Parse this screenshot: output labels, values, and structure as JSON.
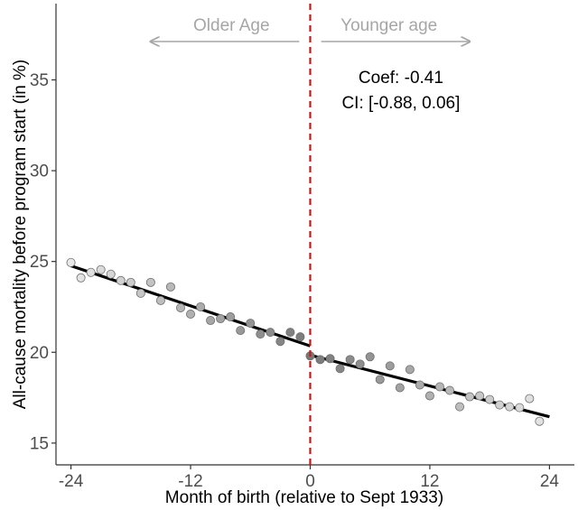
{
  "chart_data": {
    "type": "scatter",
    "title": "",
    "xlabel": "Month of birth (relative to Sept 1933)",
    "ylabel": "All-cause mortality before program start (in %)",
    "xlim": [
      -25.5,
      26.5
    ],
    "ylim": [
      13.8,
      39.2
    ],
    "x_ticks": [
      -24,
      -12,
      0,
      12,
      24
    ],
    "x_tick_labels": [
      "-24",
      "-12",
      "0",
      "12",
      "24"
    ],
    "y_ticks": [
      15,
      20,
      25,
      30,
      35
    ],
    "y_tick_labels": [
      "15",
      "20",
      "25",
      "30",
      "35"
    ],
    "grid": false,
    "cutoff": {
      "x": 0,
      "color": "#b22222",
      "style": "dashed"
    },
    "regions": {
      "left_label": "Older Age",
      "right_label": "Younger age",
      "arrow_color": "#a6a6a6"
    },
    "annotations": {
      "coef": "Coef: -0.41",
      "ci": "CI: [-0.88, 0.06]"
    },
    "fit_lines": [
      {
        "from": [
          -24,
          24.76
        ],
        "to": [
          0,
          20.35
        ]
      },
      {
        "from": [
          0,
          19.84
        ],
        "to": [
          24,
          16.45
        ]
      }
    ],
    "points": [
      {
        "x": -24,
        "y": 24.94
      },
      {
        "x": -23,
        "y": 24.1
      },
      {
        "x": -22,
        "y": 24.4
      },
      {
        "x": -21,
        "y": 24.55
      },
      {
        "x": -20,
        "y": 24.3
      },
      {
        "x": -19,
        "y": 23.95
      },
      {
        "x": -18,
        "y": 23.85
      },
      {
        "x": -17,
        "y": 23.25
      },
      {
        "x": -16,
        "y": 23.85
      },
      {
        "x": -15,
        "y": 22.85
      },
      {
        "x": -14,
        "y": 23.6
      },
      {
        "x": -13,
        "y": 22.45
      },
      {
        "x": -12,
        "y": 22.1
      },
      {
        "x": -11,
        "y": 22.5
      },
      {
        "x": -10,
        "y": 21.75
      },
      {
        "x": -9,
        "y": 21.85
      },
      {
        "x": -8,
        "y": 21.95
      },
      {
        "x": -7,
        "y": 21.2
      },
      {
        "x": -6,
        "y": 21.6
      },
      {
        "x": -5,
        "y": 21.0
      },
      {
        "x": -4,
        "y": 21.1
      },
      {
        "x": -3,
        "y": 20.6
      },
      {
        "x": -2,
        "y": 21.1
      },
      {
        "x": -1,
        "y": 20.85
      },
      {
        "x": 0,
        "y": 19.8
      },
      {
        "x": 1,
        "y": 19.6
      },
      {
        "x": 2,
        "y": 19.65
      },
      {
        "x": 3,
        "y": 19.1
      },
      {
        "x": 4,
        "y": 19.6
      },
      {
        "x": 5,
        "y": 19.35
      },
      {
        "x": 6,
        "y": 19.75
      },
      {
        "x": 7,
        "y": 18.5
      },
      {
        "x": 8,
        "y": 19.25
      },
      {
        "x": 9,
        "y": 18.05
      },
      {
        "x": 10,
        "y": 19.05
      },
      {
        "x": 11,
        "y": 18.2
      },
      {
        "x": 12,
        "y": 17.6
      },
      {
        "x": 13,
        "y": 18.1
      },
      {
        "x": 14,
        "y": 17.9
      },
      {
        "x": 15,
        "y": 17.0
      },
      {
        "x": 16,
        "y": 17.55
      },
      {
        "x": 17,
        "y": 17.6
      },
      {
        "x": 18,
        "y": 17.4
      },
      {
        "x": 19,
        "y": 17.1
      },
      {
        "x": 20,
        "y": 17.0
      },
      {
        "x": 21,
        "y": 16.95
      },
      {
        "x": 22,
        "y": 17.45
      },
      {
        "x": 23,
        "y": 16.2
      }
    ]
  }
}
